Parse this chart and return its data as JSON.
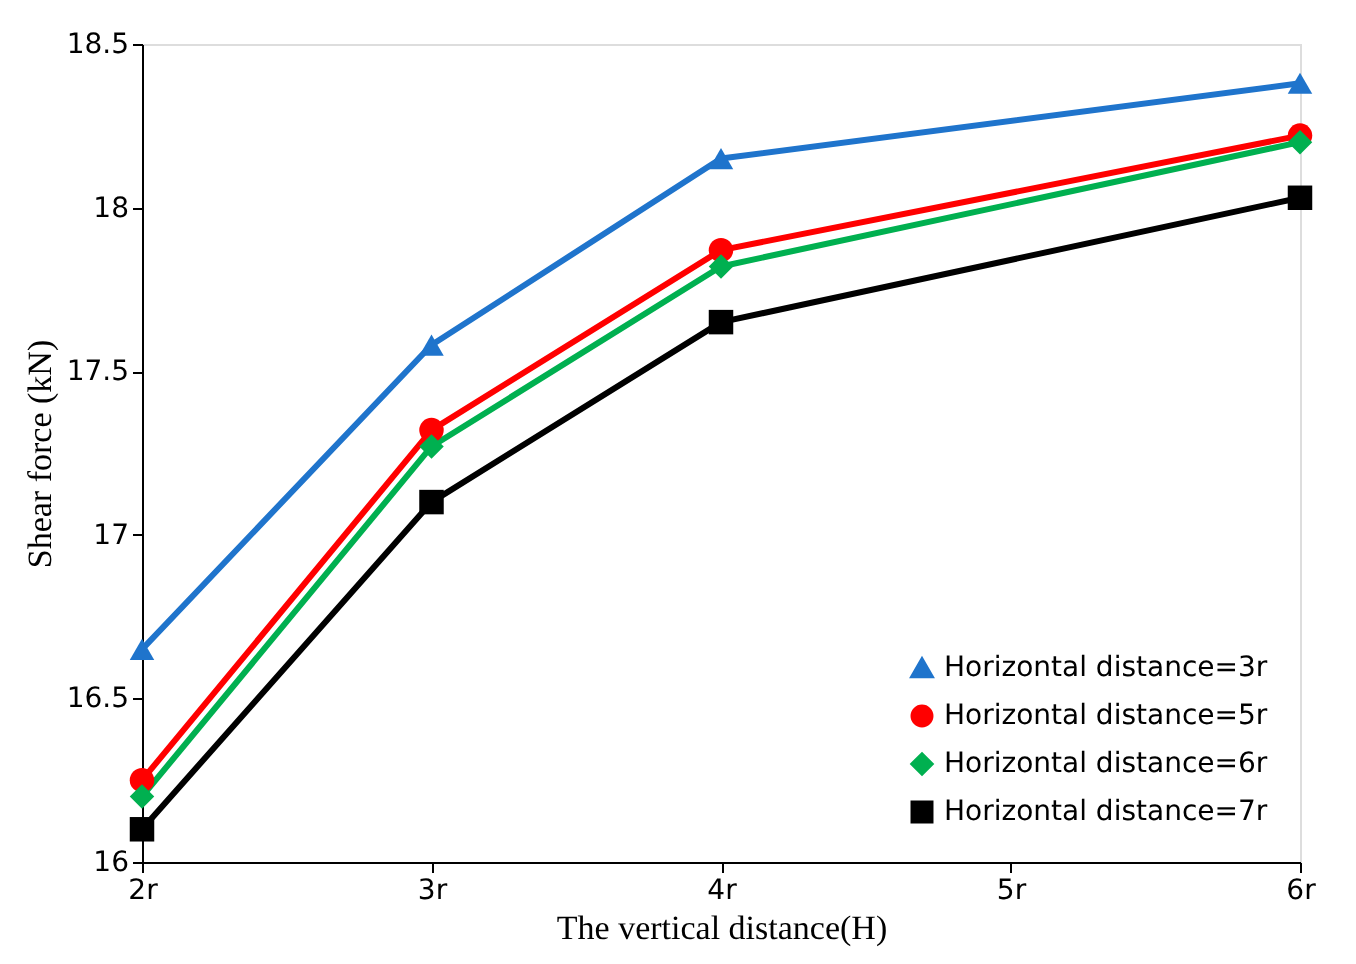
{
  "chart_data": {
    "type": "line",
    "xlabel": "The vertical distance(H)",
    "ylabel": "Shear force (kN)",
    "x": [
      2,
      3,
      4,
      6
    ],
    "xlim": [
      2,
      6
    ],
    "xticks": [
      {
        "value": 2,
        "label": "2r"
      },
      {
        "value": 3,
        "label": "3r"
      },
      {
        "value": 4,
        "label": "4r"
      },
      {
        "value": 5,
        "label": "5r"
      },
      {
        "value": 6,
        "label": "6r"
      }
    ],
    "ylim": [
      16,
      18.5
    ],
    "yticks": [
      16,
      16.5,
      17,
      17.5,
      18,
      18.5
    ],
    "grid": false,
    "legend": "bottom right",
    "line_style": "solid",
    "series": [
      {
        "name": "Horizontal distance=3r",
        "color": "#1f74cc",
        "marker": "triangle",
        "values": [
          16.65,
          17.58,
          18.15,
          18.38
        ]
      },
      {
        "name": "Horizontal distance=5r",
        "color": "#ff0000",
        "marker": "circle",
        "values": [
          16.25,
          17.32,
          17.87,
          18.22
        ]
      },
      {
        "name": "Horizontal distance=6r",
        "color": "#00b050",
        "marker": "diamond",
        "values": [
          16.2,
          17.27,
          17.82,
          18.2
        ]
      },
      {
        "name": "Horizontal distance=7r",
        "color": "#000000",
        "marker": "square",
        "values": [
          16.1,
          17.1,
          17.65,
          18.03
        ]
      }
    ]
  }
}
